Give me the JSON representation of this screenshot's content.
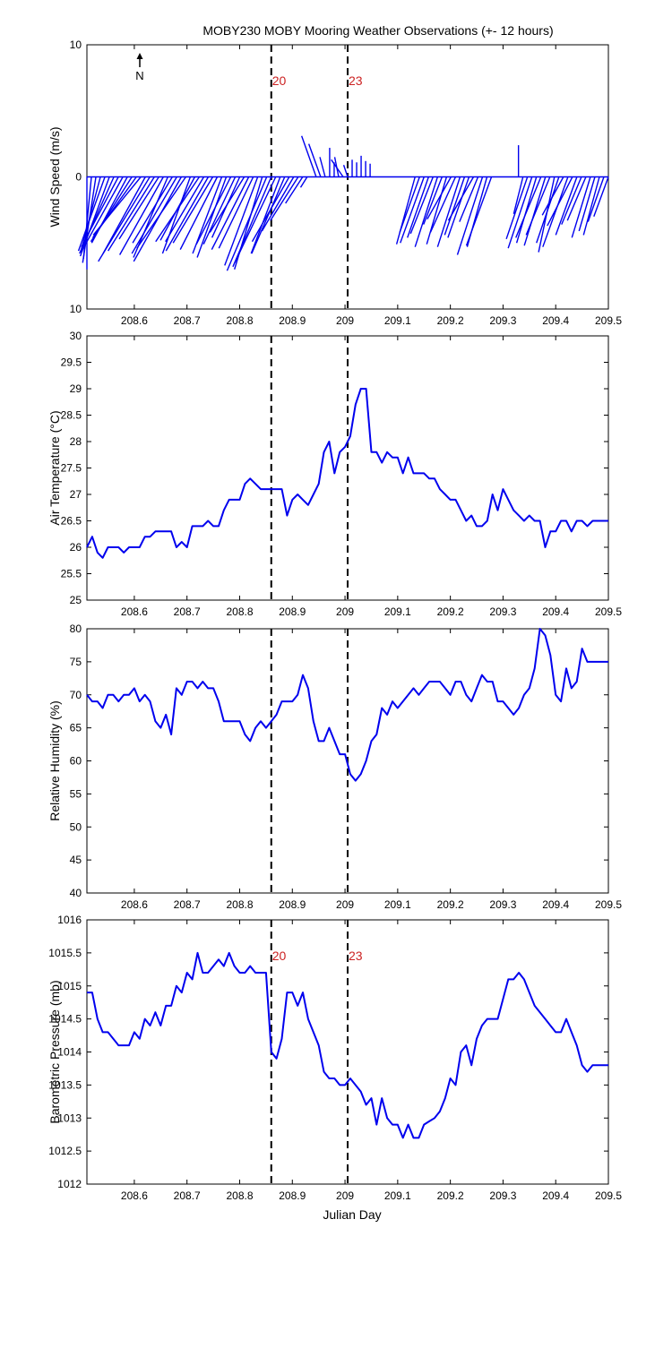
{
  "title": "MOBY230 MOBY Mooring Weather Observations (+- 12 hours)",
  "xlabel": "Julian Day",
  "north_label": "N",
  "colors": {
    "series": "#0000ee",
    "marker_text": "#cc2222",
    "axis": "#000000"
  },
  "markers": [
    {
      "x": 208.86,
      "label": "20"
    },
    {
      "x": 209.005,
      "label": "23"
    }
  ],
  "chart_data": [
    {
      "type": "quiver",
      "ylabel": "Wind Speed (m/s)",
      "xlim": [
        208.51,
        209.5
      ],
      "ylim": [
        -10,
        10
      ],
      "ytick_labels": [
        "10",
        "0",
        "10"
      ],
      "xticks": [
        208.6,
        208.7,
        208.8,
        208.9,
        209,
        209.1,
        209.2,
        209.3,
        209.4,
        209.5
      ],
      "show_xtick_labels": true,
      "show_marker_labels": true,
      "u": [
        0.0,
        -0.6,
        -1.0,
        -1.5,
        -2.0,
        -2.2,
        -2.6,
        -2.8,
        -3.0,
        -2.7,
        -3.1,
        -3.3,
        -3.6,
        -3.2,
        -3.9,
        -3.5,
        -3.0,
        -3.3,
        -2.6,
        -3.0,
        -3.4,
        -3.6,
        -3.7,
        -2.1,
        -2.6,
        -3.3,
        -2.9,
        -3.2,
        -3.0,
        -2.8,
        -2.2,
        -2.2,
        -2.6,
        -2.4,
        -2.1,
        -2.6,
        -2.8,
        -2.6,
        -2.5,
        -2.1,
        -3.0,
        -2.9,
        -3.1,
        -2.2,
        -2.5,
        -2.8,
        -2.4,
        -2.1,
        -1.3,
        -0.5,
        0.0,
        -1.1,
        -0.9,
        -0.4,
        0.0,
        0.0,
        -0.3,
        -0.9,
        -0.3,
        0.0,
        0.0,
        0.0,
        0.0,
        0.0,
        0.0,
        0.0,
        0.0,
        0.0,
        0.0,
        0.0,
        0.0,
        0.0,
        0.0,
        -1.4,
        -1.5,
        -1.8,
        -1.6,
        -1.7,
        -1.7,
        -1.4,
        -1.5,
        -1.8,
        -1.9,
        -1.7,
        -1.5,
        -1.6,
        -1.9,
        -1.4,
        -1.9,
        -1.5,
        -1.9,
        0.0,
        0.0,
        0.0,
        0.0,
        0.0,
        0.0,
        -0.7,
        -1.6,
        -1.8,
        -1.5,
        -1.9,
        -1.6,
        -1.8,
        -1.2,
        -1.7,
        -1.6,
        -1.9,
        -1.9,
        -1.6,
        -1.5,
        -1.4,
        -1.4,
        -1.2,
        -1.2,
        -1.2,
        -1.1
      ],
      "v": [
        -7.0,
        -6.2,
        -6.5,
        -5.7,
        -5.6,
        -6.0,
        -5.8,
        -5.3,
        -5.4,
        -5.0,
        -4.9,
        -4.6,
        -4.4,
        -5.8,
        -6.4,
        -5.6,
        -4.7,
        -5.9,
        -6.1,
        -5.0,
        -5.8,
        -6.4,
        -5.4,
        -5.8,
        -4.8,
        -4.9,
        -4.9,
        -5.6,
        -5.0,
        -5.5,
        -5.8,
        -6.1,
        -5.1,
        -5.1,
        -4.6,
        -4.2,
        -5.5,
        -5.4,
        -6.7,
        -7.0,
        -7.1,
        -6.8,
        -6.5,
        -5.8,
        -5.8,
        -4.9,
        -4.1,
        -3.3,
        -2.0,
        -0.8,
        0.0,
        3.1,
        2.5,
        1.5,
        2.2,
        1.1,
        1.5,
        1.3,
        0.9,
        1.3,
        1.1,
        1.6,
        1.2,
        1.0,
        0.0,
        0.0,
        0.0,
        0.0,
        0.0,
        0.0,
        0.0,
        0.0,
        0.0,
        -5.1,
        -4.2,
        -5.0,
        -4.6,
        -4.3,
        -5.3,
        -3.6,
        -5.1,
        -3.2,
        -4.2,
        -5.3,
        -4.4,
        -4.6,
        -3.3,
        -3.4,
        -5.9,
        -5.3,
        -5.2,
        0.0,
        0.0,
        0.0,
        0.0,
        0.0,
        2.4,
        -2.8,
        -4.7,
        -5.4,
        -5.0,
        -4.6,
        -5.2,
        -4.4,
        -5.7,
        -5.0,
        -2.9,
        -5.3,
        -3.7,
        -4.4,
        -3.6,
        -3.3,
        -4.6,
        -4.1,
        -4.4,
        -3.4,
        -3.0
      ]
    },
    {
      "type": "line",
      "ylabel": "Air Temperature (°C)",
      "xlim": [
        208.51,
        209.5
      ],
      "ylim": [
        25,
        30
      ],
      "yticks": [
        25,
        25.5,
        26,
        26.5,
        27,
        27.5,
        28,
        28.5,
        29,
        29.5,
        30
      ],
      "xticks": [
        208.6,
        208.7,
        208.8,
        208.9,
        209,
        209.1,
        209.2,
        209.3,
        209.4,
        209.5
      ],
      "show_xtick_labels": true,
      "show_marker_labels": false,
      "x": [
        208.51,
        208.52,
        208.53,
        208.54,
        208.55,
        208.56,
        208.57,
        208.58,
        208.59,
        208.6,
        208.61,
        208.62,
        208.63,
        208.64,
        208.65,
        208.66,
        208.67,
        208.68,
        208.69,
        208.7,
        208.71,
        208.72,
        208.73,
        208.74,
        208.75,
        208.76,
        208.77,
        208.78,
        208.79,
        208.8,
        208.81,
        208.82,
        208.83,
        208.84,
        208.85,
        208.86,
        208.87,
        208.88,
        208.89,
        208.9,
        208.91,
        208.92,
        208.93,
        208.94,
        208.95,
        208.96,
        208.97,
        208.98,
        208.99,
        209.0,
        209.01,
        209.02,
        209.03,
        209.04,
        209.05,
        209.06,
        209.07,
        209.08,
        209.09,
        209.1,
        209.11,
        209.12,
        209.13,
        209.14,
        209.15,
        209.16,
        209.17,
        209.18,
        209.19,
        209.2,
        209.21,
        209.22,
        209.23,
        209.24,
        209.25,
        209.26,
        209.27,
        209.28,
        209.29,
        209.3,
        209.31,
        209.32,
        209.33,
        209.34,
        209.35,
        209.36,
        209.37,
        209.38,
        209.39,
        209.4,
        209.41,
        209.42,
        209.43,
        209.44,
        209.45,
        209.46,
        209.47,
        209.48,
        209.49,
        209.5
      ],
      "y": [
        26.0,
        26.2,
        25.9,
        25.8,
        26.0,
        26.0,
        26.0,
        25.9,
        26.0,
        26.0,
        26.0,
        26.2,
        26.2,
        26.3,
        26.3,
        26.3,
        26.3,
        26.0,
        26.1,
        26.0,
        26.4,
        26.4,
        26.4,
        26.5,
        26.4,
        26.4,
        26.7,
        26.9,
        26.9,
        26.9,
        27.2,
        27.3,
        27.2,
        27.1,
        27.1,
        27.1,
        27.1,
        27.1,
        26.6,
        26.9,
        27.0,
        26.9,
        26.8,
        27.0,
        27.2,
        27.8,
        28.0,
        27.4,
        27.8,
        27.9,
        28.1,
        28.7,
        29.0,
        29.0,
        27.8,
        27.8,
        27.6,
        27.8,
        27.7,
        27.7,
        27.4,
        27.7,
        27.4,
        27.4,
        27.4,
        27.3,
        27.3,
        27.1,
        27.0,
        26.9,
        26.9,
        26.7,
        26.5,
        26.6,
        26.4,
        26.4,
        26.5,
        27.0,
        26.7,
        27.1,
        26.9,
        26.7,
        26.6,
        26.5,
        26.6,
        26.5,
        26.5,
        26.0,
        26.3,
        26.3,
        26.5,
        26.5,
        26.3,
        26.5,
        26.5,
        26.4,
        26.5,
        26.5,
        26.5,
        26.5
      ]
    },
    {
      "type": "line",
      "ylabel": "Relative Humidity (%)",
      "xlim": [
        208.51,
        209.5
      ],
      "ylim": [
        40,
        80
      ],
      "yticks": [
        40,
        45,
        50,
        55,
        60,
        65,
        70,
        75,
        80
      ],
      "xticks": [
        208.6,
        208.7,
        208.8,
        208.9,
        209,
        209.1,
        209.2,
        209.3,
        209.4,
        209.5
      ],
      "show_xtick_labels": true,
      "show_marker_labels": false,
      "x": [
        208.51,
        208.52,
        208.53,
        208.54,
        208.55,
        208.56,
        208.57,
        208.58,
        208.59,
        208.6,
        208.61,
        208.62,
        208.63,
        208.64,
        208.65,
        208.66,
        208.67,
        208.68,
        208.69,
        208.7,
        208.71,
        208.72,
        208.73,
        208.74,
        208.75,
        208.76,
        208.77,
        208.78,
        208.79,
        208.8,
        208.81,
        208.82,
        208.83,
        208.84,
        208.85,
        208.86,
        208.87,
        208.88,
        208.89,
        208.9,
        208.91,
        208.92,
        208.93,
        208.94,
        208.95,
        208.96,
        208.97,
        208.98,
        208.99,
        209.0,
        209.01,
        209.02,
        209.03,
        209.04,
        209.05,
        209.06,
        209.07,
        209.08,
        209.09,
        209.1,
        209.11,
        209.12,
        209.13,
        209.14,
        209.15,
        209.16,
        209.17,
        209.18,
        209.19,
        209.2,
        209.21,
        209.22,
        209.23,
        209.24,
        209.25,
        209.26,
        209.27,
        209.28,
        209.29,
        209.3,
        209.31,
        209.32,
        209.33,
        209.34,
        209.35,
        209.36,
        209.37,
        209.38,
        209.39,
        209.4,
        209.41,
        209.42,
        209.43,
        209.44,
        209.45,
        209.46,
        209.47,
        209.48,
        209.49,
        209.5
      ],
      "y": [
        70,
        69,
        69,
        68,
        70,
        70,
        69,
        70,
        70,
        71,
        69,
        70,
        69,
        66,
        65,
        67,
        64,
        71,
        70,
        72,
        72,
        71,
        72,
        71,
        71,
        69,
        66,
        66,
        66,
        66,
        64,
        63,
        65,
        66,
        65,
        66,
        67,
        69,
        69,
        69,
        70,
        73,
        71,
        66,
        63,
        63,
        65,
        63,
        61,
        61,
        58,
        57,
        58,
        60,
        63,
        64,
        68,
        67,
        69,
        68,
        69,
        70,
        71,
        70,
        71,
        72,
        72,
        72,
        71,
        70,
        72,
        72,
        70,
        69,
        71,
        73,
        72,
        72,
        69,
        69,
        68,
        67,
        68,
        70,
        71,
        74,
        80,
        79,
        76,
        70,
        69,
        74,
        71,
        72,
        77,
        75,
        75,
        75,
        75,
        75
      ]
    },
    {
      "type": "line",
      "ylabel": "Barometric Pressure (mb)",
      "xlim": [
        208.51,
        209.5
      ],
      "ylim": [
        1012,
        1016
      ],
      "yticks": [
        1012,
        1012.5,
        1013,
        1013.5,
        1014,
        1014.5,
        1015,
        1015.5,
        1016
      ],
      "xticks": [
        208.6,
        208.7,
        208.8,
        208.9,
        209,
        209.1,
        209.2,
        209.3,
        209.4,
        209.5
      ],
      "show_xtick_labels": true,
      "show_marker_labels": true,
      "x": [
        208.51,
        208.52,
        208.53,
        208.54,
        208.55,
        208.56,
        208.57,
        208.58,
        208.59,
        208.6,
        208.61,
        208.62,
        208.63,
        208.64,
        208.65,
        208.66,
        208.67,
        208.68,
        208.69,
        208.7,
        208.71,
        208.72,
        208.73,
        208.74,
        208.75,
        208.76,
        208.77,
        208.78,
        208.79,
        208.8,
        208.81,
        208.82,
        208.83,
        208.84,
        208.85,
        208.86,
        208.87,
        208.88,
        208.89,
        208.9,
        208.91,
        208.92,
        208.93,
        208.94,
        208.95,
        208.96,
        208.97,
        208.98,
        208.99,
        209.0,
        209.01,
        209.02,
        209.03,
        209.04,
        209.05,
        209.06,
        209.07,
        209.08,
        209.09,
        209.1,
        209.11,
        209.12,
        209.13,
        209.14,
        209.15,
        209.16,
        209.17,
        209.18,
        209.19,
        209.2,
        209.21,
        209.22,
        209.23,
        209.24,
        209.25,
        209.26,
        209.27,
        209.28,
        209.29,
        209.3,
        209.31,
        209.32,
        209.33,
        209.34,
        209.35,
        209.36,
        209.37,
        209.38,
        209.39,
        209.4,
        209.41,
        209.42,
        209.43,
        209.44,
        209.45,
        209.46,
        209.47,
        209.48,
        209.49,
        209.5
      ],
      "y": [
        1014.9,
        1014.9,
        1014.5,
        1014.3,
        1014.3,
        1014.2,
        1014.1,
        1014.1,
        1014.1,
        1014.3,
        1014.2,
        1014.5,
        1014.4,
        1014.6,
        1014.4,
        1014.7,
        1014.7,
        1015.0,
        1014.9,
        1015.2,
        1015.1,
        1015.5,
        1015.2,
        1015.2,
        1015.3,
        1015.4,
        1015.3,
        1015.5,
        1015.3,
        1015.2,
        1015.2,
        1015.3,
        1015.2,
        1015.2,
        1015.2,
        1014.0,
        1013.9,
        1014.2,
        1014.9,
        1014.9,
        1014.7,
        1014.9,
        1014.5,
        1014.3,
        1014.1,
        1013.7,
        1013.6,
        1013.6,
        1013.5,
        1013.5,
        1013.6,
        1013.5,
        1013.4,
        1013.2,
        1013.3,
        1012.9,
        1013.3,
        1013.0,
        1012.9,
        1012.9,
        1012.7,
        1012.9,
        1012.7,
        1012.7,
        1012.9,
        1012.95,
        1013.0,
        1013.1,
        1013.3,
        1013.6,
        1013.5,
        1014.0,
        1014.1,
        1013.8,
        1014.2,
        1014.4,
        1014.5,
        1014.5,
        1014.5,
        1014.8,
        1015.1,
        1015.1,
        1015.2,
        1015.1,
        1014.9,
        1014.7,
        1014.6,
        1014.5,
        1014.4,
        1014.3,
        1014.3,
        1014.5,
        1014.3,
        1014.1,
        1013.8,
        1013.7,
        1013.8,
        1013.8,
        1013.8,
        1013.8
      ]
    }
  ]
}
